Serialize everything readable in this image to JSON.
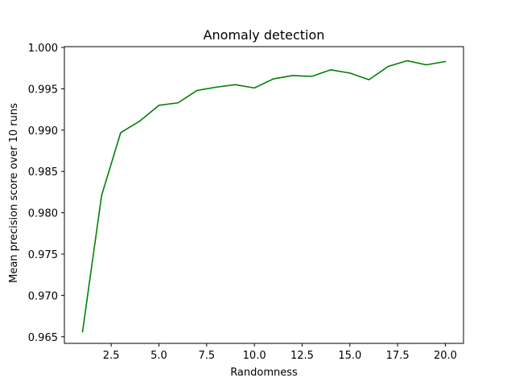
{
  "chart_data": {
    "type": "line",
    "title": "Anomaly detection",
    "xlabel": "Randomness",
    "ylabel": "Mean precision score over 10 runs",
    "xlim": [
      0.05,
      20.95
    ],
    "ylim": [
      0.9642,
      1.0001
    ],
    "xticks": [
      2.5,
      5.0,
      7.5,
      10.0,
      12.5,
      15.0,
      17.5,
      20.0
    ],
    "xtick_labels": [
      "2.5",
      "5.0",
      "7.5",
      "10.0",
      "12.5",
      "15.0",
      "17.5",
      "20.0"
    ],
    "yticks": [
      0.965,
      0.97,
      0.975,
      0.98,
      0.985,
      0.99,
      0.995,
      1.0
    ],
    "ytick_labels": [
      "0.965",
      "0.970",
      "0.975",
      "0.980",
      "0.985",
      "0.990",
      "0.995",
      "1.000"
    ],
    "grid": false,
    "series": [
      {
        "color": "#008000",
        "x": [
          1,
          2,
          3,
          4,
          5,
          6,
          7,
          8,
          9,
          10,
          11,
          12,
          13,
          14,
          15,
          16,
          17,
          18,
          19,
          20
        ],
        "y": [
          0.9656,
          0.9821,
          0.9897,
          0.9911,
          0.993,
          0.9933,
          0.9948,
          0.9952,
          0.9955,
          0.9951,
          0.9962,
          0.9966,
          0.9965,
          0.9973,
          0.9969,
          0.9961,
          0.9977,
          0.9984,
          0.9979,
          0.9983
        ]
      }
    ]
  }
}
